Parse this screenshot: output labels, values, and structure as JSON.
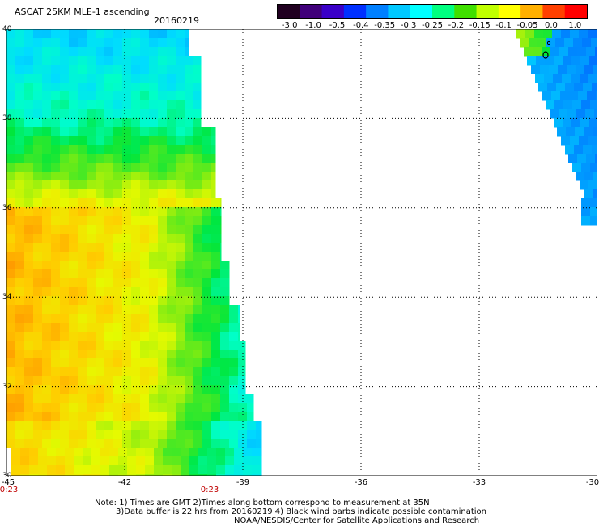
{
  "title": "ASCAT 25KM MLE-1 ascending",
  "date": "20160219",
  "colorbar": {
    "labels": [
      "-3.0",
      "-1.0",
      "-0.5",
      "-0.4",
      "-0.35",
      "-0.3",
      "-0.25",
      "-0.2",
      "-0.15",
      "-0.1",
      "-0.05",
      "0.0",
      "1.0"
    ],
    "colors": [
      "#200020",
      "#40007a",
      "#3a00c8",
      "#0030ff",
      "#0080ff",
      "#00c8ff",
      "#00ffff",
      "#00ff80",
      "#40e000",
      "#c0ff00",
      "#ffff00",
      "#ffb000",
      "#ff4000",
      "#ff0000"
    ]
  },
  "axes": {
    "lon_labels": [
      "-45",
      "-42",
      "-39",
      "-36",
      "-33",
      "-30"
    ],
    "lat_labels": [
      "30",
      "32",
      "34",
      "36",
      "38",
      "40"
    ],
    "lon_range": [
      -45,
      -30
    ],
    "lat_range": [
      30,
      40
    ],
    "grid": "dotted"
  },
  "time_labels": [
    "0:23",
    "0:23"
  ],
  "notes": {
    "line1": "Note: 1) Times are GMT 2)Times along bottom correspond to measurement at 35N",
    "line2": "3)Data buffer is 22 hrs from 20160219 4) Black wind barbs indicate possible contamination",
    "line3": "NOAA/NESDIS/Center for Satellite Applications and Research"
  }
}
